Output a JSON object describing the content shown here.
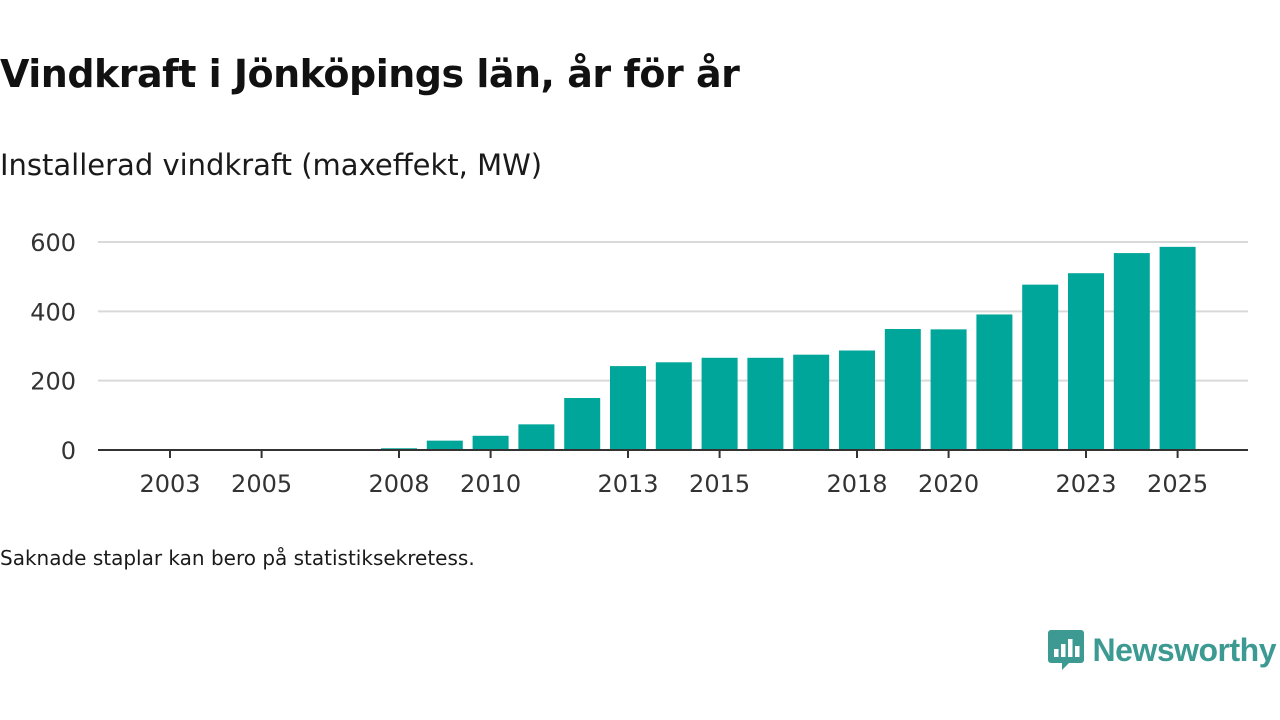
{
  "title": "Vindkraft i Jönköpings län, år för år",
  "subtitle": "Installerad vindkraft (maxeffekt, MW)",
  "note": "Saknade staplar kan bero på statistiksekretess.",
  "brand": {
    "name": "Newsworthy",
    "color": "#3d9a93"
  },
  "colors": {
    "bar": "#00a699",
    "grid": "#d9d9d9",
    "axis": "#333333"
  },
  "chart_data": {
    "type": "bar",
    "title": "Vindkraft i Jönköpings län, år för år",
    "ylabel": "Installerad vindkraft (maxeffekt, MW)",
    "xlabel": "",
    "categories": [
      2003,
      2004,
      2005,
      2006,
      2007,
      2008,
      2009,
      2010,
      2011,
      2012,
      2013,
      2014,
      2015,
      2016,
      2017,
      2018,
      2019,
      2020,
      2021,
      2022,
      2023,
      2024,
      2025
    ],
    "values": [
      0.5,
      0.5,
      0.5,
      0.5,
      0.5,
      5,
      27,
      41,
      74,
      150,
      242,
      253,
      266,
      266,
      275,
      287,
      349,
      348,
      391,
      477,
      510,
      568,
      586
    ],
    "ylim": [
      0,
      600
    ],
    "yticks": [
      0,
      200,
      400,
      600
    ],
    "xtick_labels": [
      2003,
      2005,
      2008,
      2010,
      2013,
      2015,
      2018,
      2020,
      2023,
      2025
    ],
    "grid": true,
    "legend": "none"
  }
}
